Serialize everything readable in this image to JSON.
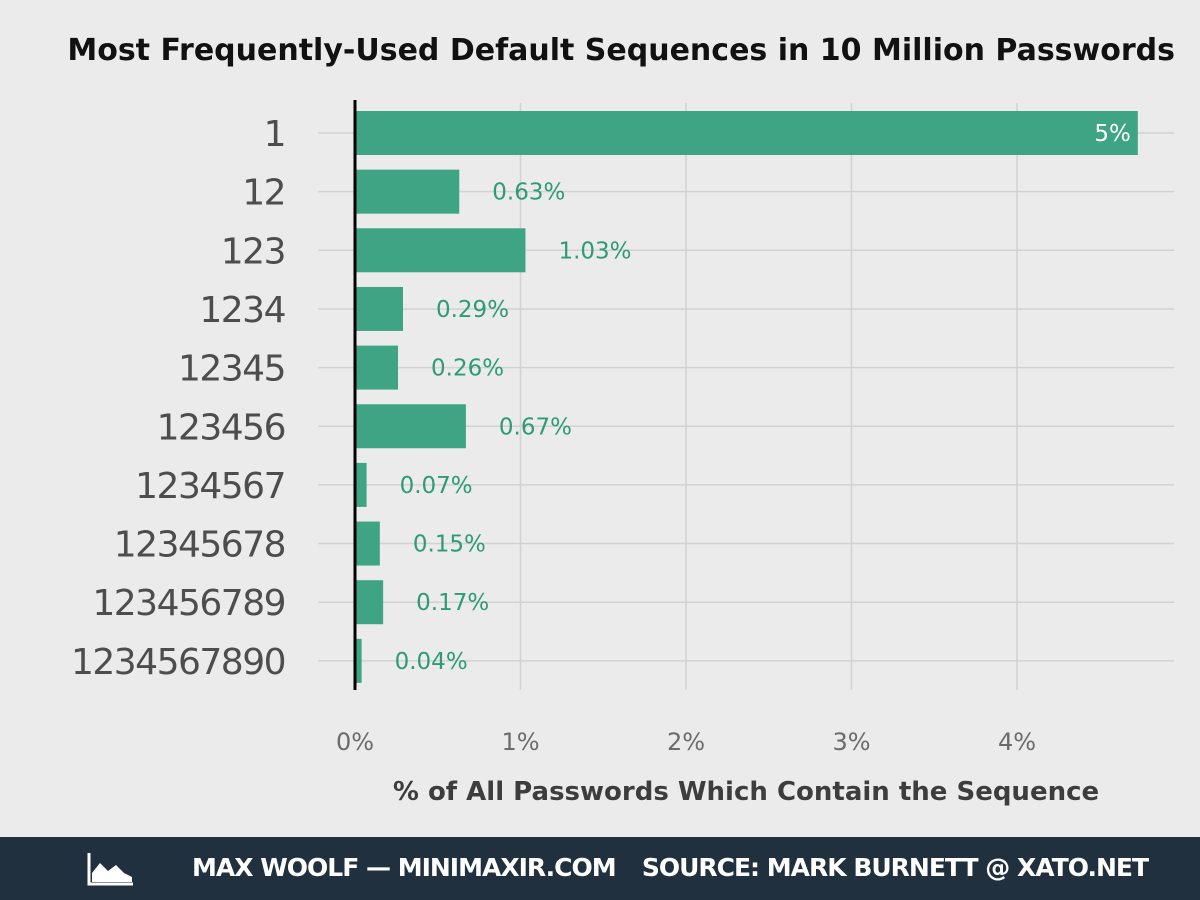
{
  "chart_data": {
    "type": "bar",
    "orientation": "horizontal",
    "title": "Most Frequently-Used Default Sequences in 10 Million Passwords",
    "xlabel": "% of All Passwords Which Contain the Sequence",
    "ylabel": "",
    "categories": [
      "1",
      "12",
      "123",
      "1234",
      "12345",
      "123456",
      "1234567",
      "12345678",
      "123456789",
      "1234567890"
    ],
    "values": [
      4.73,
      0.63,
      1.03,
      0.29,
      0.26,
      0.67,
      0.07,
      0.15,
      0.17,
      0.04
    ],
    "value_labels": [
      "5%",
      "0.63%",
      "1.03%",
      "0.29%",
      "0.26%",
      "0.67%",
      "0.07%",
      "0.15%",
      "0.17%",
      "0.04%"
    ],
    "xlim": [
      0,
      4.95
    ],
    "x_ticks": [
      0,
      1,
      2,
      3,
      4
    ],
    "x_tick_labels": [
      "0%",
      "1%",
      "2%",
      "3%",
      "4%"
    ],
    "grid": true,
    "bar_color": "#3fa483",
    "label_color": "#2e9b77",
    "inside_label_color": "#ffffff"
  },
  "footer": {
    "author": "MAX WOOLF — MINIMAXIR.COM",
    "source": "SOURCE: MARK BURNETT @ XATO.NET",
    "logo_icon": "area-chart-icon"
  },
  "colors": {
    "background": "#ebebeb",
    "footer_background": "#21303e"
  }
}
